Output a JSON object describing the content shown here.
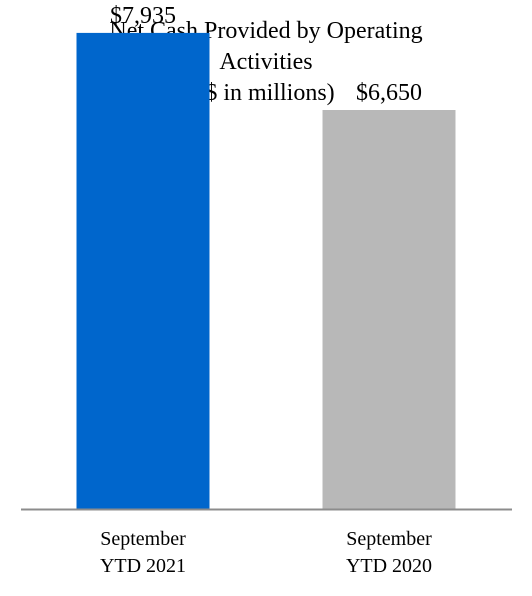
{
  "chart_data": {
    "type": "bar",
    "title_lines": [
      "Net Cash Provided by Operating",
      "Activities",
      "($ in millions)"
    ],
    "categories": [
      [
        "September",
        "YTD 2021"
      ],
      [
        "September",
        "YTD 2020"
      ]
    ],
    "values": [
      7935,
      6650
    ],
    "data_labels": [
      "$7,935",
      "$6,650"
    ],
    "colors": [
      "#0066CC",
      "#B8B8B8"
    ],
    "axis_color": "#8C8C8C",
    "ylim": [
      0,
      8000
    ],
    "grid": false,
    "legend": "none"
  }
}
